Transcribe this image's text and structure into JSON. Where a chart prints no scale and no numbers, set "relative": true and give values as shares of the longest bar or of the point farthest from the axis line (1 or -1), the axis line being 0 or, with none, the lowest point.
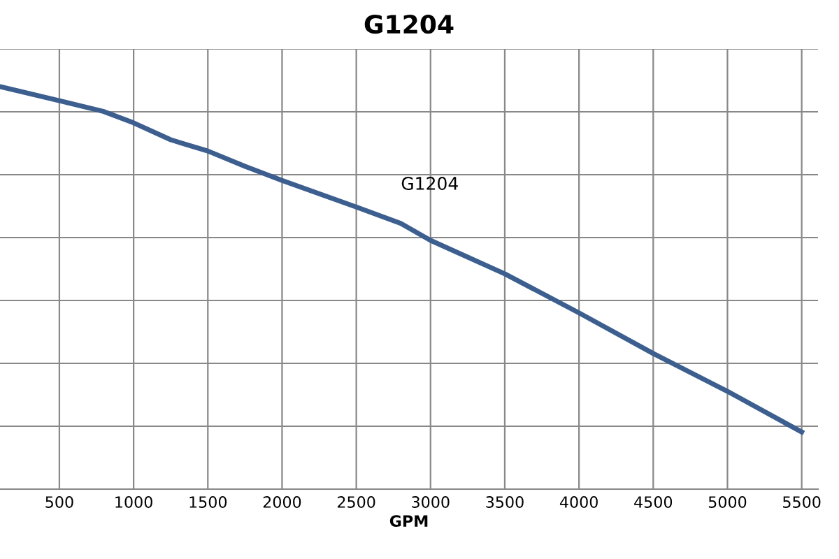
{
  "chart_data": {
    "type": "line",
    "title": "G1204",
    "xlabel": "GPM",
    "relative": true,
    "x": [
      100,
      500,
      800,
      1000,
      1250,
      1500,
      1750,
      2000,
      2500,
      2800,
      3000,
      3500,
      4000,
      4500,
      5000,
      5500
    ],
    "series": [
      {
        "color": "#3c5f8f",
        "values": [
          1,
          0.965,
          0.938,
          0.91,
          0.868,
          0.84,
          0.802,
          0.767,
          0.701,
          0.66,
          0.618,
          0.535,
          0.438,
          0.337,
          0.243,
          0.142
        ]
      }
    ],
    "xlim": [
      100,
      5610
    ],
    "xticks": [
      500,
      1000,
      1500,
      2000,
      2500,
      3000,
      3500,
      4000,
      4500,
      5000,
      5500
    ],
    "grid": true,
    "tick_labels": "x",
    "marker": "none",
    "line_style": "solid",
    "annotations": [
      "G1204"
    ]
  }
}
